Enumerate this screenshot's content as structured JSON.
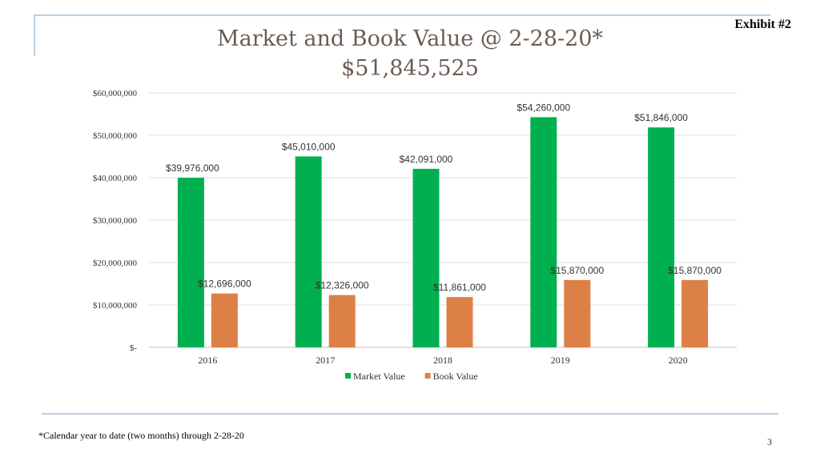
{
  "header": {
    "exhibit": "Exhibit #2",
    "title_line1": "Market and Book Value  @ 2-28-20*",
    "title_line2": "$51,845,525"
  },
  "footer": {
    "footnote": "*Calendar year to date (two months) through 2-28-20",
    "page_number": "3"
  },
  "chart_data": {
    "type": "bar",
    "categories": [
      "2016",
      "2017",
      "2018",
      "2019",
      "2020"
    ],
    "series": [
      {
        "name": "Market Value",
        "color": "#00b050",
        "values": [
          39976000,
          45010000,
          42091000,
          54260000,
          51846000
        ],
        "labels": [
          "$39,976,000",
          "$45,010,000",
          "$42,091,000",
          "$54,260,000",
          "$51,846,000"
        ]
      },
      {
        "name": "Book Value",
        "color": "#dd8047",
        "values": [
          12696000,
          12326000,
          11861000,
          15870000,
          15870000
        ],
        "labels": [
          "$12,696,000",
          "$12,326,000",
          "$11,861,000",
          "$15,870,000",
          "$15,870,000"
        ]
      }
    ],
    "y_ticks": [
      "$-",
      "$10,000,000",
      "$20,000,000",
      "$30,000,000",
      "$40,000,000",
      "$50,000,000",
      "$60,000,000"
    ],
    "ylim": [
      0,
      60000000
    ],
    "grid": true,
    "legend_position": "bottom"
  }
}
